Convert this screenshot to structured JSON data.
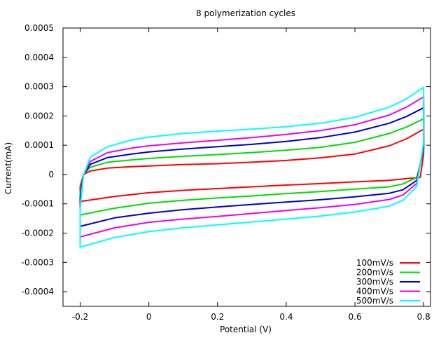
{
  "chart_data": {
    "type": "line",
    "title": "8 polymerization cycles",
    "xlabel": "Potential (V)",
    "ylabel": "Current(mA)",
    "xlim": [
      -0.25,
      0.82
    ],
    "ylim": [
      -0.00045,
      0.0005
    ],
    "xticks": [
      -0.2,
      0,
      0.2,
      0.4,
      0.6,
      0.8
    ],
    "xtick_labels": [
      "-0.2",
      "0",
      "0.2",
      "0.4",
      "0.6",
      "0.8"
    ],
    "yticks": [
      -0.0004,
      -0.0003,
      -0.0002,
      -0.0001,
      0,
      0.0001,
      0.0002,
      0.0003,
      0.0004,
      0.0005
    ],
    "ytick_labels": [
      "-0.0004",
      "-0.0003",
      "-0.0002",
      "-0.0001",
      "0",
      "0.0001",
      "0.0002",
      "0.0003",
      "0.0004",
      "0.0005"
    ],
    "grid": false,
    "legend_position": "bottom-right",
    "series": [
      {
        "name": "100mV/s",
        "color": "#ff0000",
        "upper_sweep": [
          [
            -0.2,
            -4e-05
          ],
          [
            -0.19,
            0.0
          ],
          [
            -0.17,
            1.2e-05
          ],
          [
            -0.12,
            2.2e-05
          ],
          [
            -0.05,
            2.7e-05
          ],
          [
            0.0,
            2.9e-05
          ],
          [
            0.1,
            3.4e-05
          ],
          [
            0.2,
            3.7e-05
          ],
          [
            0.3,
            4.2e-05
          ],
          [
            0.4,
            4.8e-05
          ],
          [
            0.5,
            5.7e-05
          ],
          [
            0.6,
            7e-05
          ],
          [
            0.7,
            9.8e-05
          ],
          [
            0.75,
            0.000122
          ],
          [
            0.8,
            0.000155
          ]
        ],
        "lower_sweep": [
          [
            0.8,
            0.000155
          ],
          [
            0.8,
            7e-05
          ],
          [
            0.79,
            -1e-05
          ],
          [
            0.75,
            -1.4e-05
          ],
          [
            0.7,
            -2e-05
          ],
          [
            0.6,
            -2.5e-05
          ],
          [
            0.5,
            -3.1e-05
          ],
          [
            0.4,
            -3.6e-05
          ],
          [
            0.3,
            -4.2e-05
          ],
          [
            0.2,
            -4.8e-05
          ],
          [
            0.1,
            -5.4e-05
          ],
          [
            0.0,
            -6.2e-05
          ],
          [
            -0.1,
            -7.5e-05
          ],
          [
            -0.2,
            -9.2e-05
          ],
          [
            -0.2,
            -4e-05
          ]
        ]
      },
      {
        "name": "200mV/s",
        "color": "#00dd00",
        "upper_sweep": [
          [
            -0.2,
            -6e-05
          ],
          [
            -0.19,
            0.0
          ],
          [
            -0.17,
            2.5e-05
          ],
          [
            -0.12,
            4.2e-05
          ],
          [
            -0.05,
            5e-05
          ],
          [
            0.0,
            5.5e-05
          ],
          [
            0.1,
            6.2e-05
          ],
          [
            0.2,
            6.8e-05
          ],
          [
            0.3,
            7.5e-05
          ],
          [
            0.4,
            8.3e-05
          ],
          [
            0.5,
            9.3e-05
          ],
          [
            0.6,
            0.00011
          ],
          [
            0.7,
            0.00014
          ],
          [
            0.75,
            0.000162
          ],
          [
            0.8,
            0.00019
          ]
        ],
        "lower_sweep": [
          [
            0.8,
            0.00019
          ],
          [
            0.8,
            8e-05
          ],
          [
            0.78,
            -1e-05
          ],
          [
            0.74,
            -3.2e-05
          ],
          [
            0.7,
            -4.2e-05
          ],
          [
            0.6,
            -5e-05
          ],
          [
            0.5,
            -5.8e-05
          ],
          [
            0.4,
            -6.5e-05
          ],
          [
            0.3,
            -7.3e-05
          ],
          [
            0.2,
            -8e-05
          ],
          [
            0.1,
            -8.8e-05
          ],
          [
            0.0,
            -9.8e-05
          ],
          [
            -0.1,
            -0.000115
          ],
          [
            -0.2,
            -0.000138
          ],
          [
            -0.2,
            -6e-05
          ]
        ]
      },
      {
        "name": "300mV/s",
        "color": "#0000cc",
        "upper_sweep": [
          [
            -0.2,
            -8e-05
          ],
          [
            -0.19,
            0.0
          ],
          [
            -0.17,
            3.5e-05
          ],
          [
            -0.12,
            5.8e-05
          ],
          [
            -0.05,
            7e-05
          ],
          [
            0.0,
            7.7e-05
          ],
          [
            0.1,
            8.7e-05
          ],
          [
            0.2,
            9.5e-05
          ],
          [
            0.3,
            0.000103
          ],
          [
            0.4,
            0.000113
          ],
          [
            0.5,
            0.000126
          ],
          [
            0.6,
            0.000145
          ],
          [
            0.7,
            0.000175
          ],
          [
            0.75,
            0.000198
          ],
          [
            0.8,
            0.000228
          ]
        ],
        "lower_sweep": [
          [
            0.8,
            0.000228
          ],
          [
            0.8,
            9e-05
          ],
          [
            0.78,
            -2e-05
          ],
          [
            0.74,
            -5.2e-05
          ],
          [
            0.7,
            -6.4e-05
          ],
          [
            0.6,
            -7.6e-05
          ],
          [
            0.5,
            -8.6e-05
          ],
          [
            0.4,
            -9.4e-05
          ],
          [
            0.3,
            -0.000102
          ],
          [
            0.2,
            -0.000111
          ],
          [
            0.1,
            -0.00012
          ],
          [
            0.0,
            -0.000132
          ],
          [
            -0.1,
            -0.000148
          ],
          [
            -0.2,
            -0.000177
          ],
          [
            -0.2,
            -8e-05
          ]
        ]
      },
      {
        "name": "400mV/s",
        "color": "#ee00ee",
        "upper_sweep": [
          [
            -0.2,
            -0.0001
          ],
          [
            -0.19,
            0.0
          ],
          [
            -0.17,
            4.5e-05
          ],
          [
            -0.12,
            7.5e-05
          ],
          [
            -0.05,
            9e-05
          ],
          [
            0.0,
            9.8e-05
          ],
          [
            0.1,
            0.000108
          ],
          [
            0.2,
            0.000117
          ],
          [
            0.3,
            0.000126
          ],
          [
            0.4,
            0.000137
          ],
          [
            0.5,
            0.00015
          ],
          [
            0.6,
            0.00017
          ],
          [
            0.7,
            0.000203
          ],
          [
            0.75,
            0.00023
          ],
          [
            0.8,
            0.000265
          ]
        ],
        "lower_sweep": [
          [
            0.8,
            0.000265
          ],
          [
            0.8,
            0.0001
          ],
          [
            0.78,
            -3e-05
          ],
          [
            0.74,
            -7e-05
          ],
          [
            0.7,
            -8.5e-05
          ],
          [
            0.6,
            -0.000102
          ],
          [
            0.5,
            -0.000113
          ],
          [
            0.4,
            -0.000123
          ],
          [
            0.3,
            -0.000133
          ],
          [
            0.2,
            -0.000143
          ],
          [
            0.1,
            -0.000152
          ],
          [
            0.0,
            -0.000163
          ],
          [
            -0.1,
            -0.000182
          ],
          [
            -0.2,
            -0.000213
          ],
          [
            -0.2,
            -0.0001
          ]
        ]
      },
      {
        "name": "500mV/s",
        "color": "#00ffff",
        "upper_sweep": [
          [
            -0.2,
            -0.00012
          ],
          [
            -0.19,
            0.0
          ],
          [
            -0.17,
            6e-05
          ],
          [
            -0.12,
            9.5e-05
          ],
          [
            -0.05,
            0.000118
          ],
          [
            0.0,
            0.000128
          ],
          [
            0.1,
            0.00014
          ],
          [
            0.2,
            0.000148
          ],
          [
            0.3,
            0.000155
          ],
          [
            0.4,
            0.000163
          ],
          [
            0.5,
            0.000175
          ],
          [
            0.6,
            0.000195
          ],
          [
            0.7,
            0.00023
          ],
          [
            0.75,
            0.000258
          ],
          [
            0.8,
            0.000298
          ]
        ],
        "lower_sweep": [
          [
            0.8,
            0.000298
          ],
          [
            0.8,
            0.00011
          ],
          [
            0.78,
            -4e-05
          ],
          [
            0.74,
            -8.8e-05
          ],
          [
            0.7,
            -0.000108
          ],
          [
            0.6,
            -0.000128
          ],
          [
            0.5,
            -0.000142
          ],
          [
            0.4,
            -0.000152
          ],
          [
            0.3,
            -0.000162
          ],
          [
            0.2,
            -0.000172
          ],
          [
            0.1,
            -0.000182
          ],
          [
            0.0,
            -0.000195
          ],
          [
            -0.1,
            -0.000215
          ],
          [
            -0.2,
            -0.000248
          ],
          [
            -0.2,
            -0.00012
          ]
        ]
      }
    ]
  }
}
